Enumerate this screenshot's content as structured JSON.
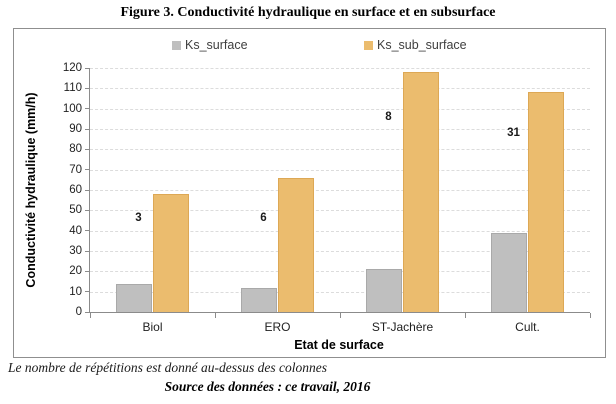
{
  "title": "Figure 3. Conductivité hydraulique en surface et en subsurface",
  "footnote": "Le nombre de répétitions est donné au-dessus des colonnes",
  "source": "Source des données : ce travail, 2016",
  "chart_data": {
    "type": "bar",
    "title": "Figure 3. Conductivité hydraulique en surface et en subsurface",
    "categories": [
      "Biol",
      "ERO",
      "ST-Jachère",
      "Cult."
    ],
    "series": [
      {
        "name": "Ks_surface",
        "color": "#bfbfbf",
        "border_color": "#a9a9a9",
        "values": [
          14,
          12,
          21,
          39
        ]
      },
      {
        "name": "Ks_sub_surface",
        "color": "#ebbc6e",
        "border_color": "#ddA855",
        "values": [
          58,
          66,
          118,
          108
        ]
      }
    ],
    "annotations": [
      {
        "category": "Biol",
        "text": "3",
        "y": 46
      },
      {
        "category": "ERO",
        "text": "6",
        "y": 46
      },
      {
        "category": "ST-Jachère",
        "text": "8",
        "y": 96
      },
      {
        "category": "Cult.",
        "text": "31",
        "y": 88
      }
    ],
    "xlabel": "Etat de surface",
    "ylabel": "Conductivité hydraulique (mm/h)",
    "ylim": [
      0,
      120
    ],
    "ytick_step": 10,
    "grid": "horizontal-dashed",
    "legend_position": "top"
  },
  "colors": {
    "grid": "#dcdcdc",
    "axis": "#8b8b8b",
    "box_border": "#8f8f8f",
    "legend_text": "#3f3f3f"
  }
}
